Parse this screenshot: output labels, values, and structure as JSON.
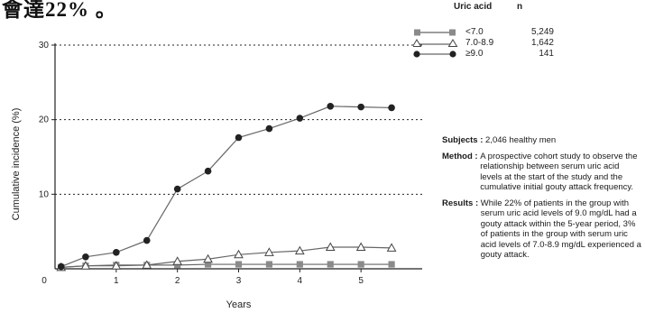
{
  "fragment_text": "會達22% 。",
  "legend": {
    "header_group": "Uric acid",
    "header_n": "n",
    "items": [
      {
        "label": "<7.0",
        "n": "5,249",
        "marker": "square"
      },
      {
        "label": "7.0-8.9",
        "n": "1,642",
        "marker": "triangle"
      },
      {
        "label": "≥9.0",
        "n": "141",
        "marker": "circle"
      }
    ]
  },
  "info": {
    "subjects_key": "Subjects : ",
    "subjects_text": "2,046 healthy men",
    "method_key": "Method : ",
    "method_text": "A prospective cohort study to observe the relationship between serum uric acid levels at the start of the study and the cumulative initial gouty attack frequency.",
    "results_key": "Results : ",
    "results_text": "While 22% of patients in the group with serum uric acid levels of 9.0 mg/dL had a gouty attack within the 5-year period, 3% of patients in the group with serum uric acid levels of 7.0-8.9 mg/dL experienced a gouty attack."
  },
  "colors": {
    "line": "#666666",
    "square_fill": "#8a8a8a",
    "circle_fill": "#222222",
    "grid": "#222222",
    "axis": "#222222"
  },
  "chart_data": {
    "type": "line",
    "xlabel": "Years",
    "ylabel": "Cumulative incidence (%)",
    "xlim": [
      0,
      6
    ],
    "ylim": [
      0,
      30
    ],
    "xticks": [
      0,
      1,
      2,
      3,
      4,
      5
    ],
    "yticks": [
      10,
      20,
      30
    ],
    "ytick_labels": [
      "10",
      "20",
      "30"
    ],
    "xtick_labels": [
      "0",
      "1",
      "2",
      "3",
      "4",
      "5"
    ],
    "grid": "horizontal dotted at 10, 20, 30",
    "legend_position": "top-right",
    "series": [
      {
        "name": "<7.0",
        "marker": "square",
        "x": [
          0.1,
          0.5,
          1.0,
          1.5,
          2.0,
          2.5,
          3.0,
          3.5,
          4.0,
          4.5,
          5.0,
          5.5
        ],
        "y": [
          0.2,
          0.4,
          0.5,
          0.5,
          0.5,
          0.6,
          0.6,
          0.6,
          0.6,
          0.6,
          0.6,
          0.6
        ]
      },
      {
        "name": "7.0-8.9",
        "marker": "triangle",
        "x": [
          0.1,
          0.5,
          1.0,
          1.5,
          2.0,
          2.5,
          3.0,
          3.5,
          4.0,
          4.5,
          5.0,
          5.5
        ],
        "y": [
          0.2,
          0.4,
          0.4,
          0.5,
          1.0,
          1.3,
          1.9,
          2.2,
          2.4,
          2.9,
          2.9,
          2.8
        ]
      },
      {
        "name": "≥9.0",
        "marker": "circle",
        "x": [
          0.1,
          0.5,
          1.0,
          1.5,
          2.0,
          2.5,
          3.0,
          3.5,
          4.0,
          4.5,
          5.0,
          5.5
        ],
        "y": [
          0.3,
          1.6,
          2.2,
          3.8,
          10.7,
          13.1,
          17.6,
          18.8,
          20.2,
          21.8,
          21.7,
          21.6
        ]
      }
    ]
  }
}
